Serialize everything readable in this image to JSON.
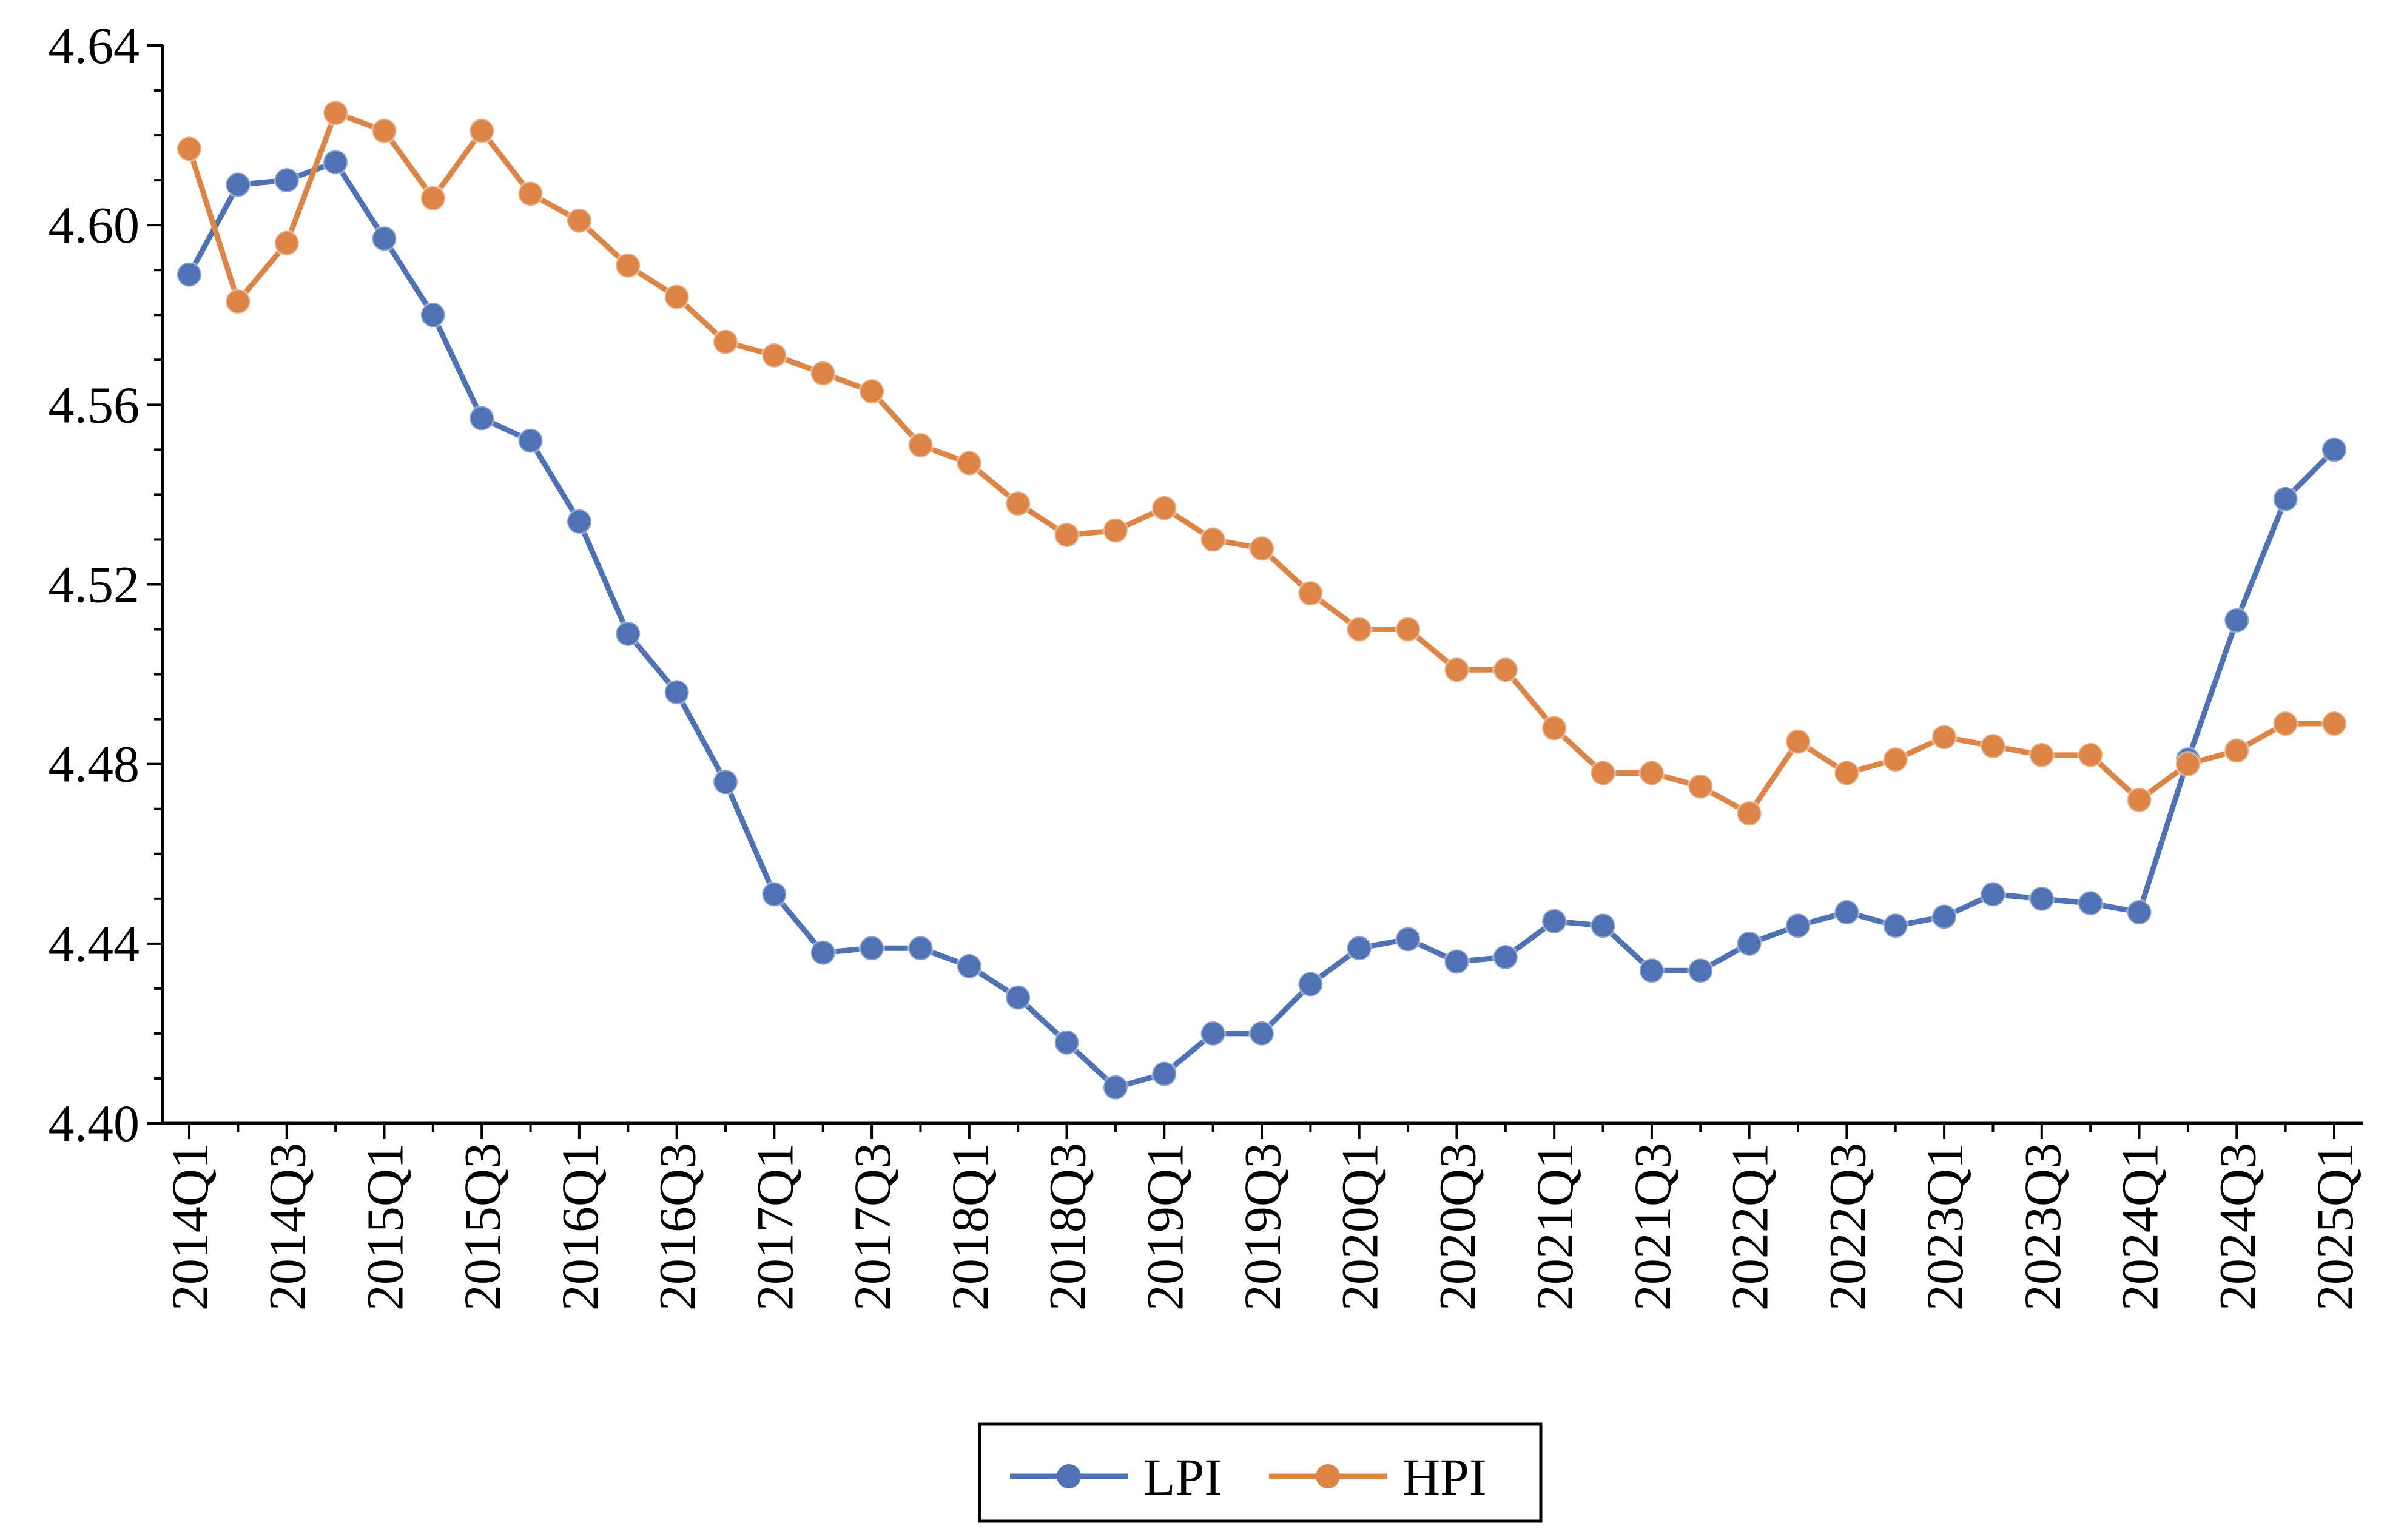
{
  "chart_data": {
    "type": "line",
    "title": "",
    "xlabel": "",
    "ylabel": "",
    "ylim": [
      4.4,
      4.64
    ],
    "yticks": [
      "4.40",
      "4.44",
      "4.48",
      "4.52",
      "4.56",
      "4.60",
      "4.64"
    ],
    "ytick_values": [
      4.4,
      4.44,
      4.48,
      4.52,
      4.56,
      4.6,
      4.64
    ],
    "categories": [
      "2014Q1",
      "2014Q2",
      "2014Q3",
      "2014Q4",
      "2015Q1",
      "2015Q2",
      "2015Q3",
      "2015Q4",
      "2016Q1",
      "2016Q2",
      "2016Q3",
      "2016Q4",
      "2017Q1",
      "2017Q2",
      "2017Q3",
      "2017Q4",
      "2018Q1",
      "2018Q2",
      "2018Q3",
      "2018Q4",
      "2019Q1",
      "2019Q2",
      "2019Q3",
      "2019Q4",
      "2020Q1",
      "2020Q2",
      "2020Q3",
      "2020Q4",
      "2021Q1",
      "2021Q2",
      "2021Q3",
      "2021Q4",
      "2022Q1",
      "2022Q2",
      "2022Q3",
      "2022Q4",
      "2023Q1",
      "2023Q2",
      "2023Q3",
      "2023Q4",
      "2024Q1",
      "2024Q2",
      "2024Q3",
      "2024Q4",
      "2025Q1"
    ],
    "xtick_labels": [
      "2014Q1",
      "2014Q3",
      "2015Q1",
      "2015Q3",
      "2016Q1",
      "2016Q3",
      "2017Q1",
      "2017Q3",
      "2018Q1",
      "2018Q3",
      "2019Q1",
      "2019Q3",
      "2020Q1",
      "2020Q3",
      "2021Q1",
      "2021Q3",
      "2022Q1",
      "2022Q3",
      "2023Q1",
      "2023Q3",
      "2024Q1",
      "2024Q3",
      "2025Q1"
    ],
    "series": [
      {
        "name": "LPI",
        "color": "#4F72B4",
        "values": [
          4.589,
          4.609,
          4.61,
          4.614,
          4.597,
          4.58,
          4.557,
          4.552,
          4.534,
          4.509,
          4.496,
          4.476,
          4.451,
          4.438,
          4.439,
          4.439,
          4.435,
          4.428,
          4.418,
          4.408,
          4.411,
          4.42,
          4.42,
          4.431,
          4.439,
          4.441,
          4.436,
          4.437,
          4.445,
          4.444,
          4.434,
          4.434,
          4.44,
          4.444,
          4.447,
          4.444,
          4.446,
          4.451,
          4.45,
          4.449,
          4.447,
          4.481,
          4.512,
          4.539,
          4.55
        ]
      },
      {
        "name": "HPI",
        "color": "#DD8447",
        "values": [
          4.617,
          4.583,
          4.596,
          4.625,
          4.621,
          4.606,
          4.621,
          4.607,
          4.601,
          4.591,
          4.584,
          4.574,
          4.571,
          4.567,
          4.563,
          4.551,
          4.547,
          4.538,
          4.531,
          4.532,
          4.537,
          4.53,
          4.528,
          4.518,
          4.51,
          4.51,
          4.501,
          4.501,
          4.488,
          4.478,
          4.478,
          4.475,
          4.469,
          4.485,
          4.478,
          4.481,
          4.486,
          4.484,
          4.482,
          4.482,
          4.472,
          4.48,
          4.483,
          4.489,
          4.489
        ]
      }
    ],
    "legend": {
      "position": "bottom-center",
      "entries": [
        "LPI",
        "HPI"
      ]
    },
    "grid": false
  }
}
